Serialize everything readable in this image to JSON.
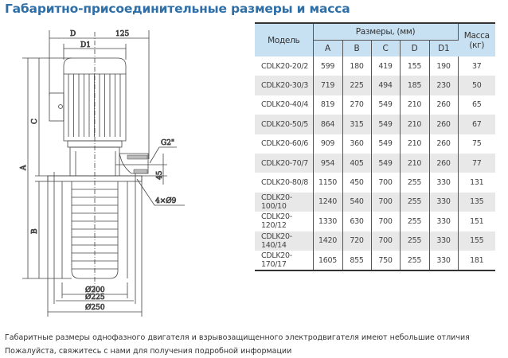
{
  "title": "Габаритно-присоединительные размеры и масса",
  "drawing": {
    "labels": {
      "D": "D",
      "w125": "125",
      "D1": "D1",
      "A": "A",
      "B": "B",
      "C": "C",
      "G2": "G2\"",
      "h45": "45",
      "holes": "4×Ø9",
      "d200": "Ø200",
      "d225": "Ø225",
      "d250": "Ø250"
    }
  },
  "table": {
    "model_header": "Модель",
    "dims_header": "Размеры, (мм)",
    "mass_header": "Масса (кг)",
    "columns": [
      "A",
      "B",
      "C",
      "D",
      "D1"
    ],
    "rows": [
      [
        "CDLK20-20/2",
        "599",
        "180",
        "419",
        "155",
        "190",
        "37"
      ],
      [
        "CDLK20-30/3",
        "719",
        "225",
        "494",
        "185",
        "230",
        "50"
      ],
      [
        "CDLK20-40/4",
        "819",
        "270",
        "549",
        "210",
        "260",
        "65"
      ],
      [
        "CDLK20-50/5",
        "864",
        "315",
        "549",
        "210",
        "260",
        "67"
      ],
      [
        "CDLK20-60/6",
        "909",
        "360",
        "549",
        "210",
        "260",
        "75"
      ],
      [
        "CDLK20-70/7",
        "954",
        "405",
        "549",
        "210",
        "260",
        "77"
      ],
      [
        "CDLK20-80/8",
        "1150",
        "450",
        "700",
        "255",
        "330",
        "131"
      ],
      [
        "CDLK20-100/10",
        "1240",
        "540",
        "700",
        "255",
        "330",
        "135"
      ],
      [
        "CDLK20-120/12",
        "1330",
        "630",
        "700",
        "255",
        "330",
        "151"
      ],
      [
        "CDLK20-140/14",
        "1420",
        "720",
        "700",
        "255",
        "330",
        "155"
      ],
      [
        "CDLK20-170/17",
        "1605",
        "855",
        "750",
        "255",
        "330",
        "181"
      ]
    ]
  },
  "footer": [
    "Габаритные размеры однофазного двигателя и взрывозащищенного электродвигателя имеют небольшие отличия",
    "Пожалуйста, свяжитесь с нами для получения подробной информации"
  ]
}
